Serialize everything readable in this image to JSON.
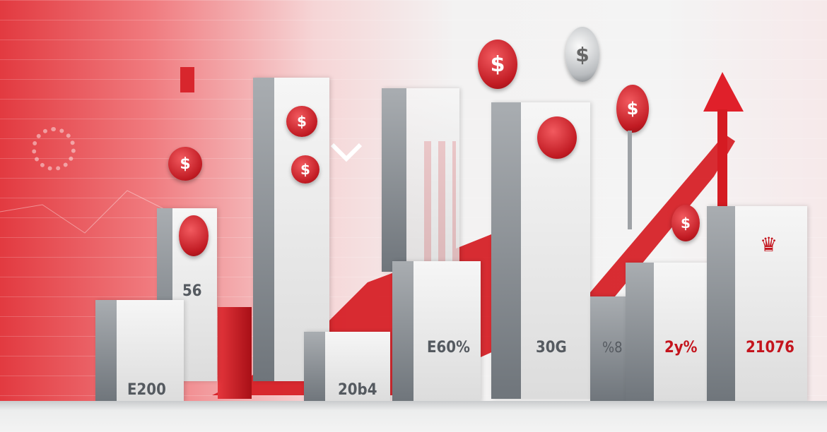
{
  "illustration": {
    "labels": [
      "56",
      "E200",
      "20b4",
      "E60%",
      "30G",
      "%8",
      "2y%",
      "21076"
    ],
    "coin_symbol": "$",
    "colors": {
      "accent_red": "#d0161f",
      "bar_gray": "#8a8f94",
      "bar_light": "#efefef",
      "background": "#f4f4f4"
    }
  }
}
